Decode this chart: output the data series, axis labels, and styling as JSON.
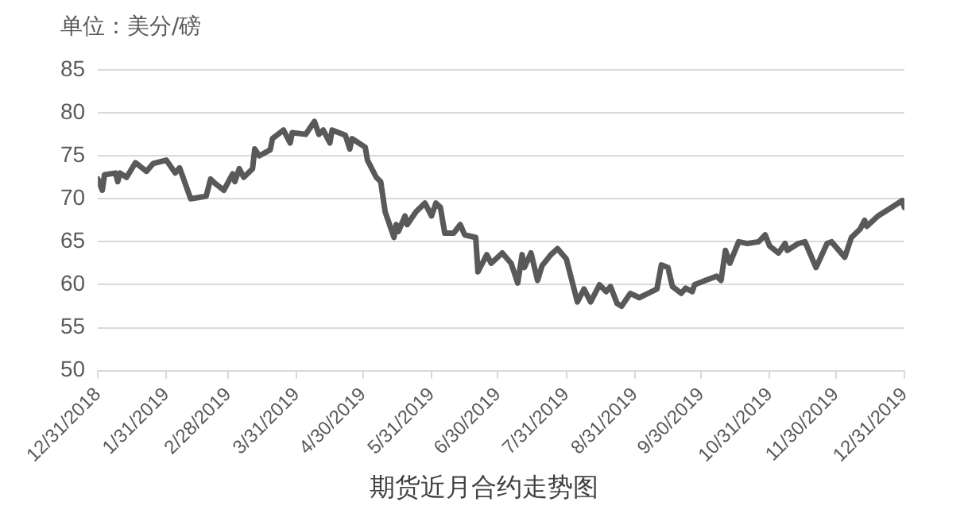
{
  "chart_data": {
    "type": "line",
    "title": "期货近月合约走势图",
    "ylabel": "单位：美分/磅",
    "x": [
      "2018-12-31",
      "2019-01-02",
      "2019-01-03",
      "2019-01-08",
      "2019-01-09",
      "2019-01-10",
      "2019-01-13",
      "2019-01-17",
      "2019-01-22",
      "2019-01-25",
      "2019-01-31",
      "2019-02-04",
      "2019-02-06",
      "2019-02-11",
      "2019-02-18",
      "2019-02-20",
      "2019-02-22",
      "2019-02-26",
      "2019-03-02",
      "2019-03-03",
      "2019-03-05",
      "2019-03-07",
      "2019-03-11",
      "2019-03-12",
      "2019-03-14",
      "2019-03-19",
      "2019-03-20",
      "2019-03-25",
      "2019-03-28",
      "2019-03-29",
      "2019-04-04",
      "2019-04-08",
      "2019-04-10",
      "2019-04-12",
      "2019-04-15",
      "2019-04-16",
      "2019-04-22",
      "2019-04-24",
      "2019-04-25",
      "2019-05-01",
      "2019-05-02",
      "2019-05-06",
      "2019-05-08",
      "2019-05-10",
      "2019-05-14",
      "2019-05-15",
      "2019-05-16",
      "2019-05-19",
      "2019-05-20",
      "2019-05-24",
      "2019-05-28",
      "2019-05-31",
      "2019-06-02",
      "2019-06-04",
      "2019-06-06",
      "2019-06-10",
      "2019-06-13",
      "2019-06-15",
      "2019-06-20",
      "2019-06-21",
      "2019-06-25",
      "2019-06-27",
      "2019-07-02",
      "2019-07-06",
      "2019-07-09",
      "2019-07-11",
      "2019-07-12",
      "2019-07-15",
      "2019-07-18",
      "2019-07-20",
      "2019-07-24",
      "2019-07-27",
      "2019-07-31",
      "2019-08-02",
      "2019-08-05",
      "2019-08-08",
      "2019-08-11",
      "2019-08-15",
      "2019-08-18",
      "2019-08-20",
      "2019-08-23",
      "2019-08-25",
      "2019-08-29",
      "2019-09-02",
      "2019-09-06",
      "2019-09-10",
      "2019-09-12",
      "2019-09-15",
      "2019-09-17",
      "2019-09-21",
      "2019-09-23",
      "2019-09-26",
      "2019-09-27",
      "2019-10-02",
      "2019-10-07",
      "2019-10-09",
      "2019-10-11",
      "2019-10-13",
      "2019-10-17",
      "2019-10-21",
      "2019-10-26",
      "2019-10-29",
      "2019-10-31",
      "2019-11-04",
      "2019-11-07",
      "2019-11-08",
      "2019-11-13",
      "2019-11-16",
      "2019-11-21",
      "2019-11-26",
      "2019-11-28",
      "2019-12-04",
      "2019-12-07",
      "2019-12-11",
      "2019-12-13",
      "2019-12-14",
      "2019-12-19",
      "2019-12-24",
      "2019-12-30",
      "2019-12-31"
    ],
    "series": [
      {
        "color": "#595959",
        "values": [
          72.3,
          71.0,
          72.8,
          73.0,
          72.0,
          73.0,
          72.5,
          74.2,
          73.2,
          74.1,
          74.5,
          73.0,
          73.6,
          70.0,
          70.3,
          72.3,
          71.8,
          71.0,
          72.9,
          72.0,
          73.5,
          72.5,
          73.5,
          75.8,
          75.0,
          75.7,
          77.0,
          78.0,
          76.5,
          77.7,
          77.5,
          79.0,
          77.5,
          78.0,
          76.5,
          78.0,
          77.4,
          75.8,
          77.0,
          76.0,
          74.5,
          72.5,
          72.0,
          68.5,
          65.5,
          67.0,
          66.2,
          68.0,
          67.0,
          68.5,
          69.5,
          68.0,
          69.5,
          69.0,
          66.0,
          66.0,
          67.0,
          65.8,
          65.5,
          61.5,
          63.5,
          62.5,
          63.7,
          62.5,
          60.2,
          63.5,
          62.0,
          63.7,
          60.5,
          62.2,
          63.5,
          64.2,
          63.0,
          61.0,
          58.0,
          59.5,
          58.0,
          60.0,
          59.2,
          59.8,
          57.8,
          57.5,
          59.0,
          58.5,
          59.0,
          59.5,
          62.3,
          62.0,
          59.8,
          59.0,
          59.6,
          59.2,
          60.0,
          60.5,
          61.0,
          60.5,
          64.0,
          62.5,
          65.0,
          64.8,
          65.0,
          65.8,
          64.5,
          63.7,
          64.8,
          64.0,
          64.8,
          65.0,
          62.0,
          64.8,
          65.0,
          63.2,
          65.5,
          66.5,
          67.5,
          66.8,
          68.0,
          68.8,
          69.8,
          69.0
        ]
      }
    ],
    "xlim": [
      "2018-12-31",
      "2019-12-31"
    ],
    "xticks": [
      {
        "value": "2018-12-31",
        "label": "12/31/2018"
      },
      {
        "value": "2019-01-31",
        "label": "1/31/2019"
      },
      {
        "value": "2019-02-28",
        "label": "2/28/2019"
      },
      {
        "value": "2019-03-31",
        "label": "3/31/2019"
      },
      {
        "value": "2019-04-30",
        "label": "4/30/2019"
      },
      {
        "value": "2019-05-31",
        "label": "5/31/2019"
      },
      {
        "value": "2019-06-30",
        "label": "6/30/2019"
      },
      {
        "value": "2019-07-31",
        "label": "7/31/2019"
      },
      {
        "value": "2019-08-31",
        "label": "8/31/2019"
      },
      {
        "value": "2019-09-30",
        "label": "9/30/2019"
      },
      {
        "value": "2019-10-31",
        "label": "10/31/2019"
      },
      {
        "value": "2019-11-30",
        "label": "11/30/2019"
      },
      {
        "value": "2019-12-31",
        "label": "12/31/2019"
      }
    ],
    "ylim": [
      50,
      85
    ],
    "yticks": [
      50,
      55,
      60,
      65,
      70,
      75,
      80,
      85
    ],
    "grid": "y",
    "legend": false,
    "marker": "none",
    "line_style": "solid"
  }
}
